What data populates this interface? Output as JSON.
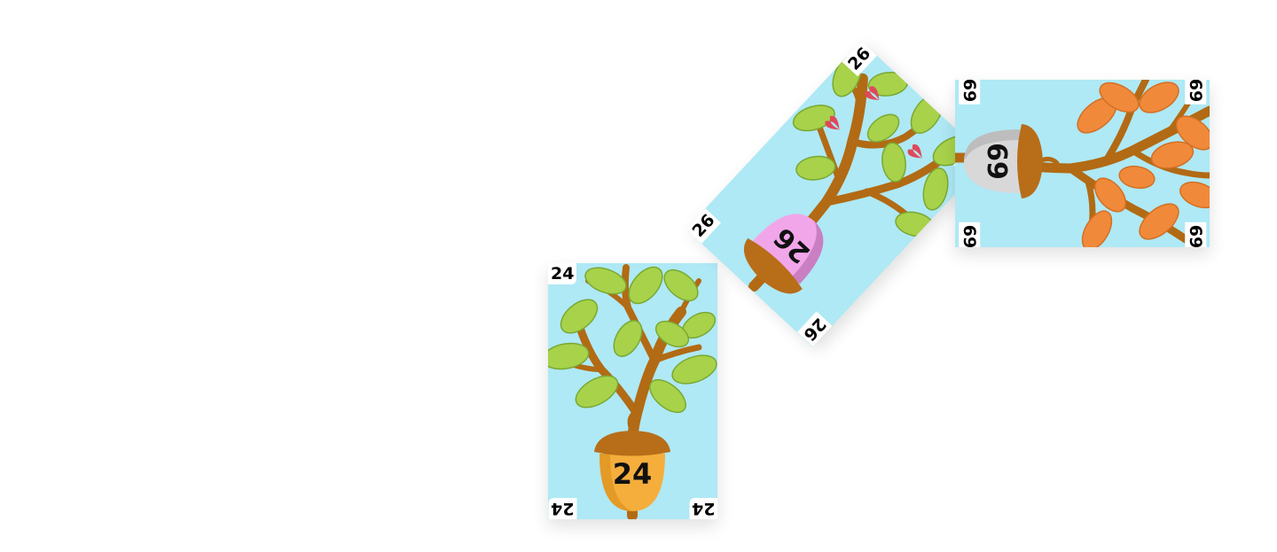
{
  "cards": [
    {
      "id": "card-24",
      "number": "24",
      "acorn_color": "#f5ae3c",
      "leaf_color": "#a8d24a",
      "corners": [
        "24",
        "24",
        "24"
      ],
      "butterflies": 0
    },
    {
      "id": "card-26",
      "number": "26",
      "acorn_color": "#f2a6ea",
      "leaf_color": "#a8d24a",
      "corners": [
        "26",
        "26",
        "26",
        "26"
      ],
      "butterflies": 3
    },
    {
      "id": "card-69",
      "number": "69",
      "acorn_color": "#d8d8d8",
      "leaf_color": "#f08a3a",
      "corners": [
        "69",
        "69",
        "69",
        "69"
      ],
      "butterflies": 0
    }
  ],
  "palette": {
    "sky": "#aee9f5",
    "branch": "#b26a14",
    "cap": "#b86d18",
    "butterfly": "#e0485a"
  }
}
